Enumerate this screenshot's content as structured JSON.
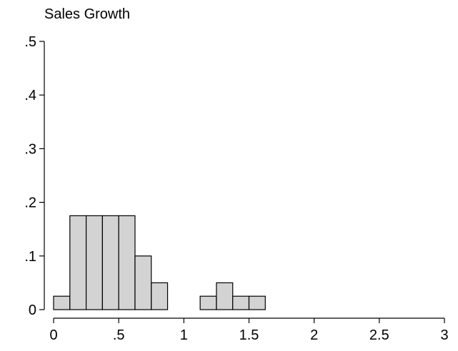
{
  "chart_data": {
    "type": "bar",
    "title": "Sales Growth",
    "xlabel": "",
    "ylabel": "",
    "bin_width": 0.125,
    "bins": [
      {
        "x0": 0.0,
        "x1": 0.125,
        "value": 0.025
      },
      {
        "x0": 0.125,
        "x1": 0.25,
        "value": 0.175
      },
      {
        "x0": 0.25,
        "x1": 0.375,
        "value": 0.175
      },
      {
        "x0": 0.375,
        "x1": 0.5,
        "value": 0.175
      },
      {
        "x0": 0.5,
        "x1": 0.625,
        "value": 0.175
      },
      {
        "x0": 0.625,
        "x1": 0.75,
        "value": 0.1
      },
      {
        "x0": 0.75,
        "x1": 0.875,
        "value": 0.05
      },
      {
        "x0": 1.125,
        "x1": 1.25,
        "value": 0.025
      },
      {
        "x0": 1.25,
        "x1": 1.375,
        "value": 0.05
      },
      {
        "x0": 1.375,
        "x1": 1.5,
        "value": 0.025
      },
      {
        "x0": 1.5,
        "x1": 1.625,
        "value": 0.025
      }
    ],
    "xlim": [
      0,
      3
    ],
    "ylim": [
      0,
      0.5
    ],
    "xticks": [
      {
        "value": 0,
        "label": "0"
      },
      {
        "value": 0.5,
        "label": ".5"
      },
      {
        "value": 1,
        "label": "1"
      },
      {
        "value": 1.5,
        "label": "1.5"
      },
      {
        "value": 2,
        "label": "2"
      },
      {
        "value": 2.5,
        "label": "2.5"
      },
      {
        "value": 3,
        "label": "3"
      }
    ],
    "yticks": [
      {
        "value": 0,
        "label": "0"
      },
      {
        "value": 0.1,
        "label": ".1"
      },
      {
        "value": 0.2,
        "label": ".2"
      },
      {
        "value": 0.3,
        "label": ".3"
      },
      {
        "value": 0.4,
        "label": ".4"
      },
      {
        "value": 0.5,
        "label": ".5"
      }
    ],
    "grid": false,
    "bar_fill": "#d3d3d3",
    "bar_stroke": "#000000"
  }
}
